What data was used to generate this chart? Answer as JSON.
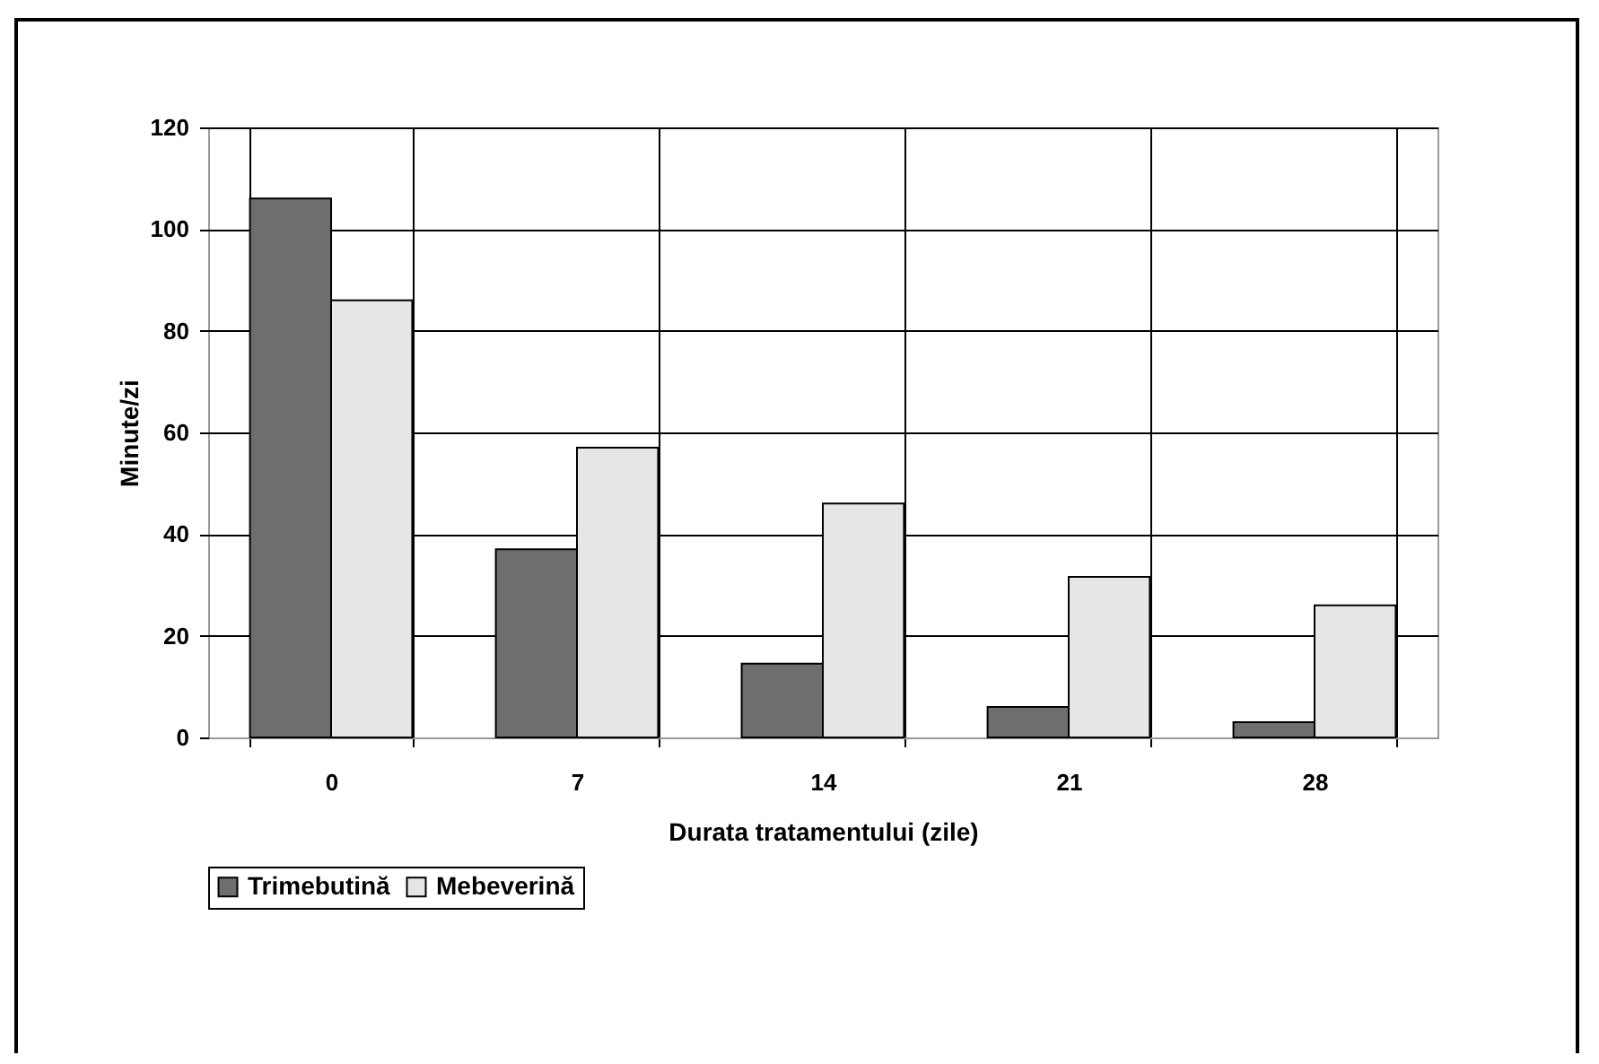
{
  "chart_data": {
    "type": "bar",
    "xlabel": "Durata tratamentului (zile)",
    "ylabel": "Minute/zi",
    "categories": [
      "0",
      "7",
      "14",
      "21",
      "28"
    ],
    "series": [
      {
        "name": "Trimebutină",
        "color": "#6e6e6e",
        "values": [
          106,
          37,
          14.5,
          6,
          3
        ]
      },
      {
        "name": "Mebeverină",
        "color": "#e6e6e6",
        "values": [
          86,
          57,
          46,
          31.6,
          26
        ]
      }
    ],
    "ylim": [
      0,
      120
    ],
    "yticks": [
      0,
      20,
      40,
      60,
      80,
      100,
      120
    ],
    "grid": true,
    "legend": "bottom"
  }
}
